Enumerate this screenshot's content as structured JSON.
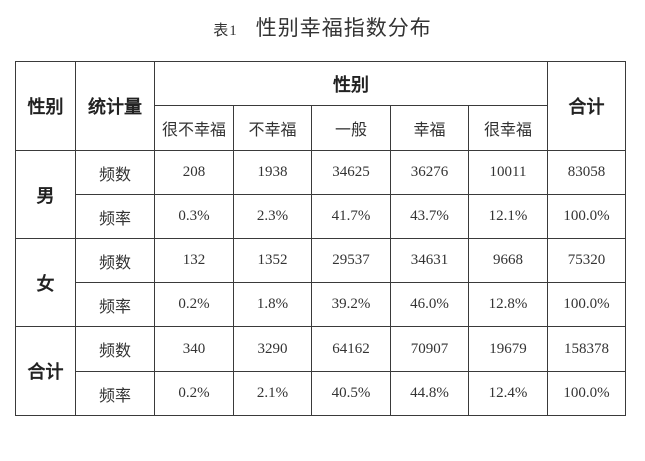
{
  "title": {
    "number": "表1",
    "text": "性别幸福指数分布"
  },
  "header": {
    "gender": "性别",
    "stat": "统计量",
    "group": "性别",
    "total": "合计",
    "levels": [
      "很不幸福",
      "不幸福",
      "一般",
      "幸福",
      "很幸福"
    ]
  },
  "rows": [
    {
      "label": "男",
      "freq_label": "频数",
      "freq": [
        "208",
        "1938",
        "34625",
        "36276",
        "10011"
      ],
      "freq_total": "83058",
      "rate_label": "频率",
      "rate": [
        "0.3%",
        "2.3%",
        "41.7%",
        "43.7%",
        "12.1%"
      ],
      "rate_total": "100.0%"
    },
    {
      "label": "女",
      "freq_label": "频数",
      "freq": [
        "132",
        "1352",
        "29537",
        "34631",
        "9668"
      ],
      "freq_total": "75320",
      "rate_label": "频率",
      "rate": [
        "0.2%",
        "1.8%",
        "39.2%",
        "46.0%",
        "12.8%"
      ],
      "rate_total": "100.0%"
    },
    {
      "label": "合计",
      "freq_label": "频数",
      "freq": [
        "340",
        "3290",
        "64162",
        "70907",
        "19679"
      ],
      "freq_total": "158378",
      "rate_label": "频率",
      "rate": [
        "0.2%",
        "2.1%",
        "40.5%",
        "44.8%",
        "12.4%"
      ],
      "rate_total": "100.0%"
    }
  ]
}
